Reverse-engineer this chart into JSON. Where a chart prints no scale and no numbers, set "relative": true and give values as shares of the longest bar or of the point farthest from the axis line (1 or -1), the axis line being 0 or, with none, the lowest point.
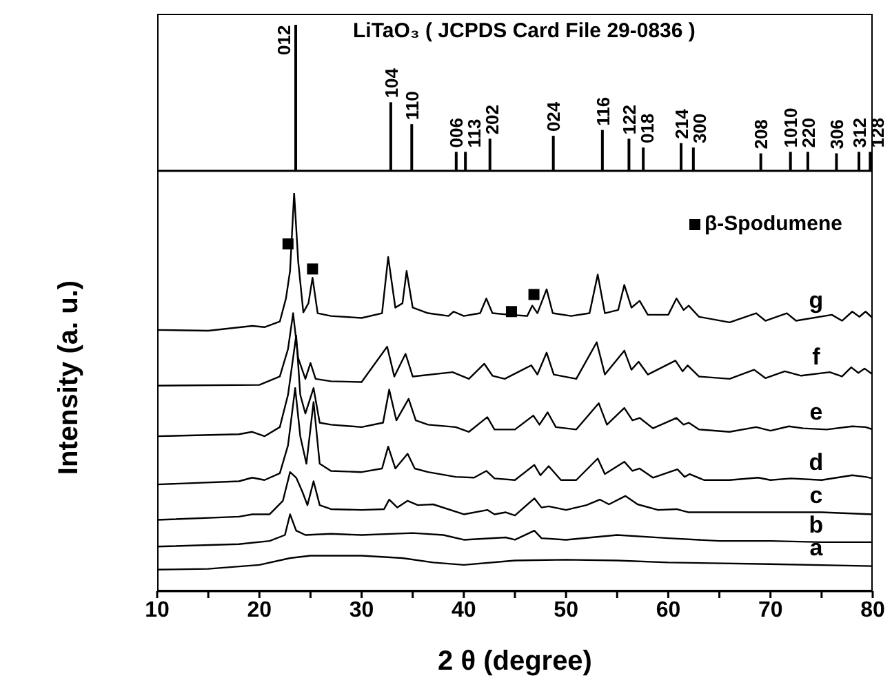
{
  "chart_data": [
    {
      "type": "bar",
      "title": "LiTaO₃ ( JCPDS Card File 29-0836 )",
      "relative": true,
      "color": "#000000",
      "xlim": [
        10,
        80
      ],
      "tick_labels": false,
      "x": [
        23.6,
        32.9,
        34.95,
        39.3,
        40.2,
        42.6,
        48.8,
        53.6,
        56.2,
        57.6,
        61.3,
        62.5,
        69.1,
        72.0,
        73.7,
        76.5,
        78.7,
        79.8
      ],
      "values": [
        1,
        0.47,
        0.32,
        0.13,
        0.13,
        0.22,
        0.24,
        0.28,
        0.22,
        0.16,
        0.19,
        0.16,
        0.12,
        0.13,
        0.13,
        0.12,
        0.13,
        0.13
      ],
      "annotations": [
        {
          "text": "012",
          "x": 23.6,
          "y": 1
        },
        {
          "text": "104",
          "x": 32.9,
          "y": 0.47
        },
        {
          "text": "110",
          "x": 34.95,
          "y": 0.32
        },
        {
          "text": "006",
          "x": 39.3,
          "y": 0.13
        },
        {
          "text": "113",
          "x": 40.2,
          "y": 0.13
        },
        {
          "text": "202",
          "x": 42.6,
          "y": 0.22
        },
        {
          "text": "024",
          "x": 48.8,
          "y": 0.24
        },
        {
          "text": "116",
          "x": 53.6,
          "y": 0.28
        },
        {
          "text": "122",
          "x": 56.2,
          "y": 0.22
        },
        {
          "text": "018",
          "x": 57.6,
          "y": 0.16
        },
        {
          "text": "214",
          "x": 61.3,
          "y": 0.19
        },
        {
          "text": "300",
          "x": 62.5,
          "y": 0.16
        },
        {
          "text": "208",
          "x": 69.1,
          "y": 0.12
        },
        {
          "text": "1010",
          "x": 72.0,
          "y": 0.13
        },
        {
          "text": "220",
          "x": 73.7,
          "y": 0.13
        },
        {
          "text": "306",
          "x": 76.5,
          "y": 0.12
        },
        {
          "text": "312",
          "x": 78.7,
          "y": 0.13
        },
        {
          "text": "128",
          "x": 79.8,
          "y": 0.13
        }
      ]
    },
    {
      "type": "line",
      "xlabel": "2 θ (degree)",
      "ylabel": "Intensity (a. u.)",
      "relative": true,
      "legend": "top right",
      "xlim": [
        10,
        80
      ],
      "xticks": [
        10,
        {
          "value": 15,
          "label": null
        },
        20,
        {
          "value": 25,
          "label": null
        },
        30,
        {
          "value": 35,
          "label": null
        },
        40,
        {
          "value": 45,
          "label": null
        },
        50,
        {
          "value": 55,
          "label": null
        },
        60,
        {
          "value": 65,
          "label": null
        },
        70,
        {
          "value": 75,
          "label": null
        },
        80
      ],
      "series": [
        {
          "name": "a",
          "color": "#000000",
          "x": [
            10,
            15,
            20,
            23,
            25,
            30,
            34,
            37,
            40,
            45,
            50,
            55,
            60,
            70,
            80
          ],
          "values": [
            0.054,
            0.056,
            0.066,
            0.083,
            0.089,
            0.089,
            0.083,
            0.072,
            0.066,
            0.077,
            0.079,
            0.077,
            0.072,
            0.068,
            0.063
          ]
        },
        {
          "name": "b",
          "color": "#000000",
          "x": [
            10,
            18,
            21,
            22.5,
            23.0,
            23.6,
            24.5,
            27,
            30,
            35,
            38,
            40,
            44.1,
            45,
            46.9,
            47.6,
            50,
            55,
            60,
            65,
            70,
            75,
            80
          ],
          "values": [
            0.112,
            0.118,
            0.126,
            0.141,
            0.193,
            0.152,
            0.141,
            0.144,
            0.141,
            0.146,
            0.141,
            0.129,
            0.135,
            0.129,
            0.152,
            0.133,
            0.129,
            0.141,
            0.133,
            0.126,
            0.126,
            0.123,
            0.123
          ]
        },
        {
          "name": "c",
          "color": "#000000",
          "x": [
            10,
            18,
            19.3,
            21,
            22.3,
            23.0,
            23.6,
            24.2,
            24.7,
            25.3,
            25.9,
            27,
            30,
            32.2,
            32.7,
            33.5,
            34.5,
            35.5,
            37,
            40,
            42.3,
            43,
            44.1,
            45,
            46.9,
            47.6,
            48.3,
            50,
            52,
            53.3,
            54.2,
            55.8,
            57,
            59,
            60.8,
            62,
            65,
            70,
            75,
            80
          ],
          "values": [
            0.179,
            0.187,
            0.193,
            0.193,
            0.227,
            0.299,
            0.285,
            0.25,
            0.216,
            0.276,
            0.216,
            0.206,
            0.204,
            0.206,
            0.23,
            0.21,
            0.227,
            0.216,
            0.218,
            0.193,
            0.204,
            0.193,
            0.198,
            0.19,
            0.233,
            0.21,
            0.213,
            0.204,
            0.216,
            0.23,
            0.218,
            0.239,
            0.218,
            0.204,
            0.206,
            0.198,
            0.198,
            0.198,
            0.198,
            0.193
          ]
        },
        {
          "name": "d",
          "color": "#000000",
          "x": [
            10,
            18,
            19.3,
            20.5,
            22,
            22.8,
            23.5,
            24.0,
            24.6,
            25.3,
            25.9,
            27,
            30,
            32,
            32.6,
            33.3,
            34.5,
            35.2,
            36.5,
            39.2,
            41,
            42.2,
            43,
            45,
            46.9,
            47.5,
            48.3,
            49.5,
            51,
            53.1,
            53.8,
            55.7,
            56.5,
            57.2,
            58.5,
            60.9,
            61.6,
            62.1,
            63.5,
            66,
            68.8,
            70,
            72,
            75,
            78,
            79.3,
            80
          ],
          "values": [
            0.268,
            0.276,
            0.285,
            0.279,
            0.296,
            0.366,
            0.51,
            0.389,
            0.32,
            0.475,
            0.32,
            0.302,
            0.299,
            0.308,
            0.363,
            0.308,
            0.345,
            0.308,
            0.299,
            0.287,
            0.285,
            0.302,
            0.283,
            0.279,
            0.317,
            0.291,
            0.314,
            0.279,
            0.279,
            0.333,
            0.294,
            0.325,
            0.302,
            0.308,
            0.285,
            0.306,
            0.287,
            0.294,
            0.279,
            0.279,
            0.285,
            0.279,
            0.283,
            0.279,
            0.291,
            0.287,
            0.283
          ]
        },
        {
          "name": "e",
          "color": "#000000",
          "x": [
            10,
            18,
            19.3,
            20.5,
            22,
            22.8,
            23.6,
            24.0,
            24.5,
            25.3,
            25.9,
            27,
            30,
            32.1,
            32.7,
            33.4,
            34.6,
            35.3,
            36.5,
            39.2,
            40.5,
            42.3,
            43,
            45,
            46.8,
            47.4,
            48.2,
            49,
            51,
            53.2,
            54,
            55.7,
            56.5,
            57.2,
            58.5,
            60.8,
            61.5,
            62,
            63,
            66,
            68.6,
            70,
            71.8,
            73.2,
            75.5,
            78,
            79.3,
            80
          ],
          "values": [
            0.389,
            0.394,
            0.4,
            0.389,
            0.412,
            0.493,
            0.642,
            0.493,
            0.446,
            0.51,
            0.423,
            0.418,
            0.412,
            0.423,
            0.506,
            0.429,
            0.483,
            0.429,
            0.418,
            0.412,
            0.4,
            0.437,
            0.406,
            0.406,
            0.441,
            0.418,
            0.449,
            0.412,
            0.406,
            0.472,
            0.418,
            0.46,
            0.429,
            0.435,
            0.409,
            0.435,
            0.418,
            0.423,
            0.406,
            0.4,
            0.412,
            0.403,
            0.414,
            0.409,
            0.406,
            0.414,
            0.412,
            0.406
          ]
        },
        {
          "name": "f",
          "color": "#000000",
          "x": [
            10,
            20,
            22,
            22.8,
            23.3,
            23.8,
            24.5,
            25.0,
            25.5,
            27,
            30,
            32.5,
            33.2,
            34.3,
            35,
            38.9,
            40.5,
            42,
            42.8,
            44,
            46.6,
            47.2,
            48.1,
            48.8,
            51,
            53.0,
            53.8,
            55.7,
            56.4,
            57.1,
            58,
            60.7,
            61.4,
            61.9,
            63,
            66,
            68.4,
            69.5,
            71.4,
            73,
            75.8,
            77,
            77.9,
            78.6,
            79.2,
            80
          ],
          "values": [
            0.516,
            0.518,
            0.539,
            0.608,
            0.698,
            0.585,
            0.533,
            0.573,
            0.533,
            0.527,
            0.525,
            0.614,
            0.539,
            0.596,
            0.539,
            0.55,
            0.533,
            0.571,
            0.541,
            0.533,
            0.567,
            0.544,
            0.599,
            0.544,
            0.533,
            0.625,
            0.544,
            0.604,
            0.556,
            0.576,
            0.544,
            0.579,
            0.552,
            0.567,
            0.539,
            0.533,
            0.556,
            0.535,
            0.552,
            0.541,
            0.55,
            0.539,
            0.562,
            0.548,
            0.559,
            0.544
          ]
        },
        {
          "name": "g",
          "color": "#000000",
          "x": [
            10,
            15,
            19.3,
            20.5,
            22,
            22.6,
            23.0,
            23.4,
            23.8,
            24.3,
            24.8,
            25.2,
            25.7,
            27,
            30,
            32,
            32.6,
            33.3,
            34,
            34.4,
            35,
            36.5,
            38.5,
            39,
            40,
            41.6,
            42.2,
            42.8,
            44.5,
            46.2,
            46.7,
            47.2,
            48.1,
            48.7,
            50.5,
            52.3,
            53.1,
            53.8,
            55.1,
            55.7,
            56.4,
            57.2,
            58,
            60,
            60.8,
            61.5,
            62,
            63,
            66,
            68.6,
            69.5,
            71.6,
            72.5,
            76,
            77,
            78,
            78.7,
            79.3,
            80
          ],
          "values": [
            0.656,
            0.654,
            0.666,
            0.663,
            0.677,
            0.735,
            0.804,
            1,
            0.827,
            0.7,
            0.723,
            0.787,
            0.698,
            0.691,
            0.686,
            0.698,
            0.839,
            0.712,
            0.723,
            0.804,
            0.712,
            0.698,
            0.691,
            0.702,
            0.691,
            0.698,
            0.735,
            0.698,
            0.694,
            0.691,
            0.717,
            0.698,
            0.758,
            0.698,
            0.691,
            0.698,
            0.795,
            0.698,
            0.706,
            0.769,
            0.712,
            0.729,
            0.694,
            0.694,
            0.735,
            0.706,
            0.717,
            0.689,
            0.675,
            0.698,
            0.679,
            0.698,
            0.679,
            0.694,
            0.679,
            0.702,
            0.689,
            0.702,
            0.686
          ]
        },
        {
          "type": "scatter",
          "name": "β-Spodumene",
          "marker": "square",
          "color": "#000000",
          "x": [
            22.8,
            25.2,
            44.66,
            46.86
          ],
          "values": [
            0.872,
            0.809,
            0.702,
            0.745
          ]
        }
      ]
    }
  ]
}
